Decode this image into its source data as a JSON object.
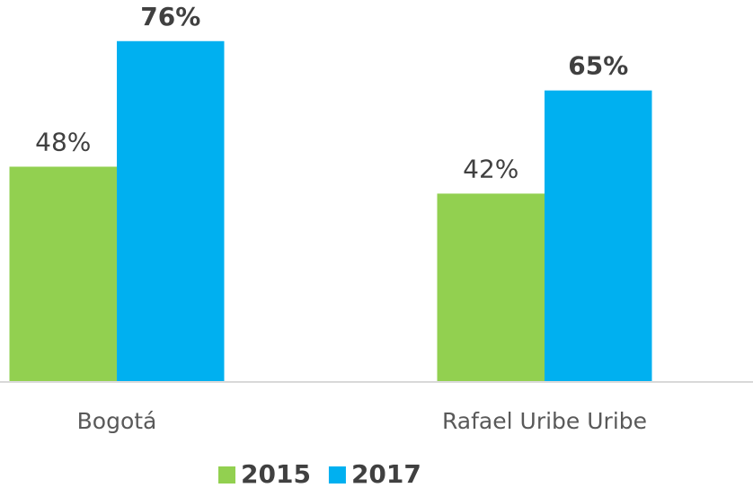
{
  "chart_data": {
    "type": "bar",
    "categories": [
      "Bogotá",
      "Rafael Uribe Uribe"
    ],
    "series": [
      {
        "name": "2015",
        "color": "#92d050",
        "values": [
          48,
          42
        ],
        "value_labels": [
          "48%",
          "42%"
        ]
      },
      {
        "name": "2017",
        "color": "#00b0f0",
        "values": [
          76,
          65
        ],
        "value_labels": [
          "76%",
          "65%"
        ]
      }
    ]
  }
}
